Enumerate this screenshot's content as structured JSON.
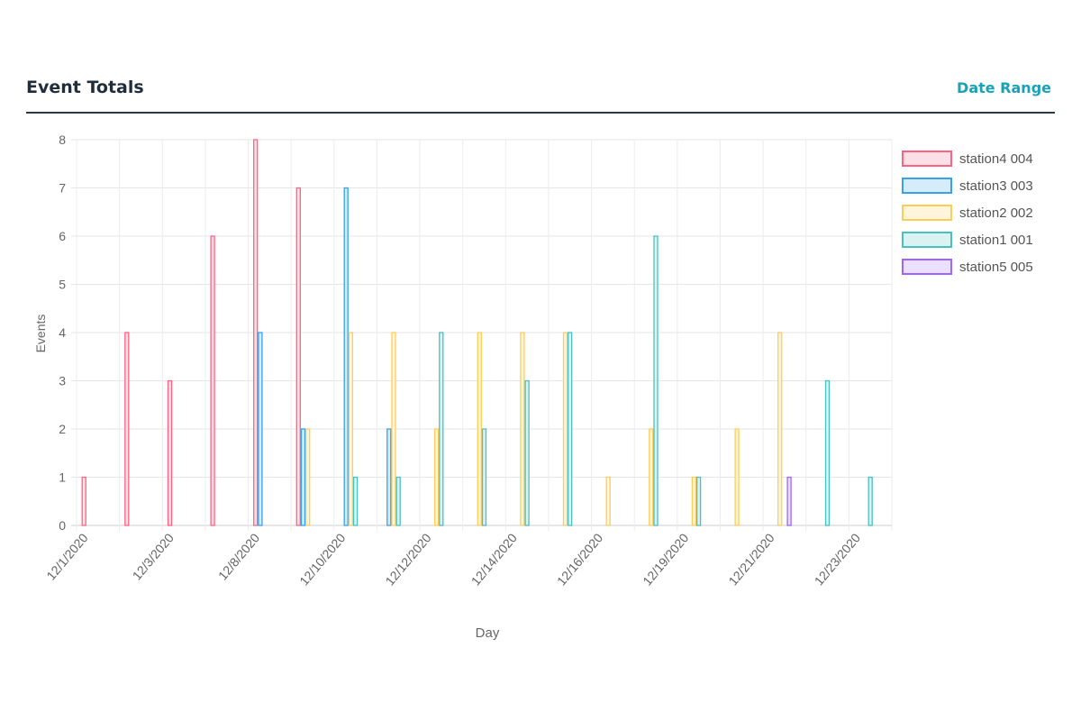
{
  "header": {
    "title": "Event Totals",
    "date_range_label": "Date Range"
  },
  "chart_data": {
    "type": "bar",
    "xlabel": "Day",
    "ylabel": "Events",
    "ylim": [
      0,
      8
    ],
    "y_ticks": [
      "0",
      "1",
      "2",
      "3",
      "4",
      "5",
      "6",
      "7",
      "8"
    ],
    "grid": true,
    "legend_position": "right",
    "categories": [
      "12/1/2020",
      "12/2/2020",
      "12/3/2020",
      "12/4/2020",
      "12/8/2020",
      "12/9/2020",
      "12/10/2020",
      "12/11/2020",
      "12/12/2020",
      "12/13/2020",
      "12/14/2020",
      "12/15/2020",
      "12/16/2020",
      "12/18/2020",
      "12/19/2020",
      "12/20/2020",
      "12/21/2020",
      "12/22/2020",
      "12/23/2020"
    ],
    "x_tick_labels": [
      "12/1/2020",
      "",
      "12/3/2020",
      "",
      "12/8/2020",
      "",
      "12/10/2020",
      "",
      "12/12/2020",
      "",
      "12/14/2020",
      "",
      "12/16/2020",
      "",
      "12/19/2020",
      "",
      "12/21/2020",
      "",
      "12/23/2020"
    ],
    "series": [
      {
        "name": "station4 004",
        "color": "#ff6384",
        "fill": "#ffe0e6",
        "values": [
          1,
          4,
          3,
          6,
          8,
          7,
          0,
          0,
          0,
          0,
          0,
          0,
          0,
          0,
          0,
          0,
          0,
          0,
          0
        ]
      },
      {
        "name": "station3 003",
        "color": "#36a2eb",
        "fill": "#d7ecfb",
        "values": [
          0,
          0,
          0,
          0,
          4,
          2,
          7,
          2,
          0,
          0,
          0,
          0,
          0,
          0,
          0,
          0,
          0,
          0,
          0
        ]
      },
      {
        "name": "station2 002",
        "color": "#ffcd56",
        "fill": "#fff5dd",
        "values": [
          0,
          0,
          0,
          0,
          0,
          2,
          4,
          4,
          2,
          4,
          4,
          4,
          1,
          2,
          1,
          2,
          4,
          0,
          0
        ]
      },
      {
        "name": "station1 001",
        "color": "#4bc0c0",
        "fill": "#dbf2f2",
        "values": [
          0,
          0,
          0,
          0,
          0,
          0,
          1,
          1,
          4,
          2,
          3,
          4,
          0,
          6,
          1,
          0,
          0,
          3,
          1
        ]
      },
      {
        "name": "station5 005",
        "color": "#9966ff",
        "fill": "#ebe0ff",
        "values": [
          0,
          0,
          0,
          0,
          0,
          0,
          0,
          0,
          0,
          0,
          0,
          0,
          0,
          0,
          0,
          0,
          1,
          0,
          0
        ]
      }
    ]
  }
}
